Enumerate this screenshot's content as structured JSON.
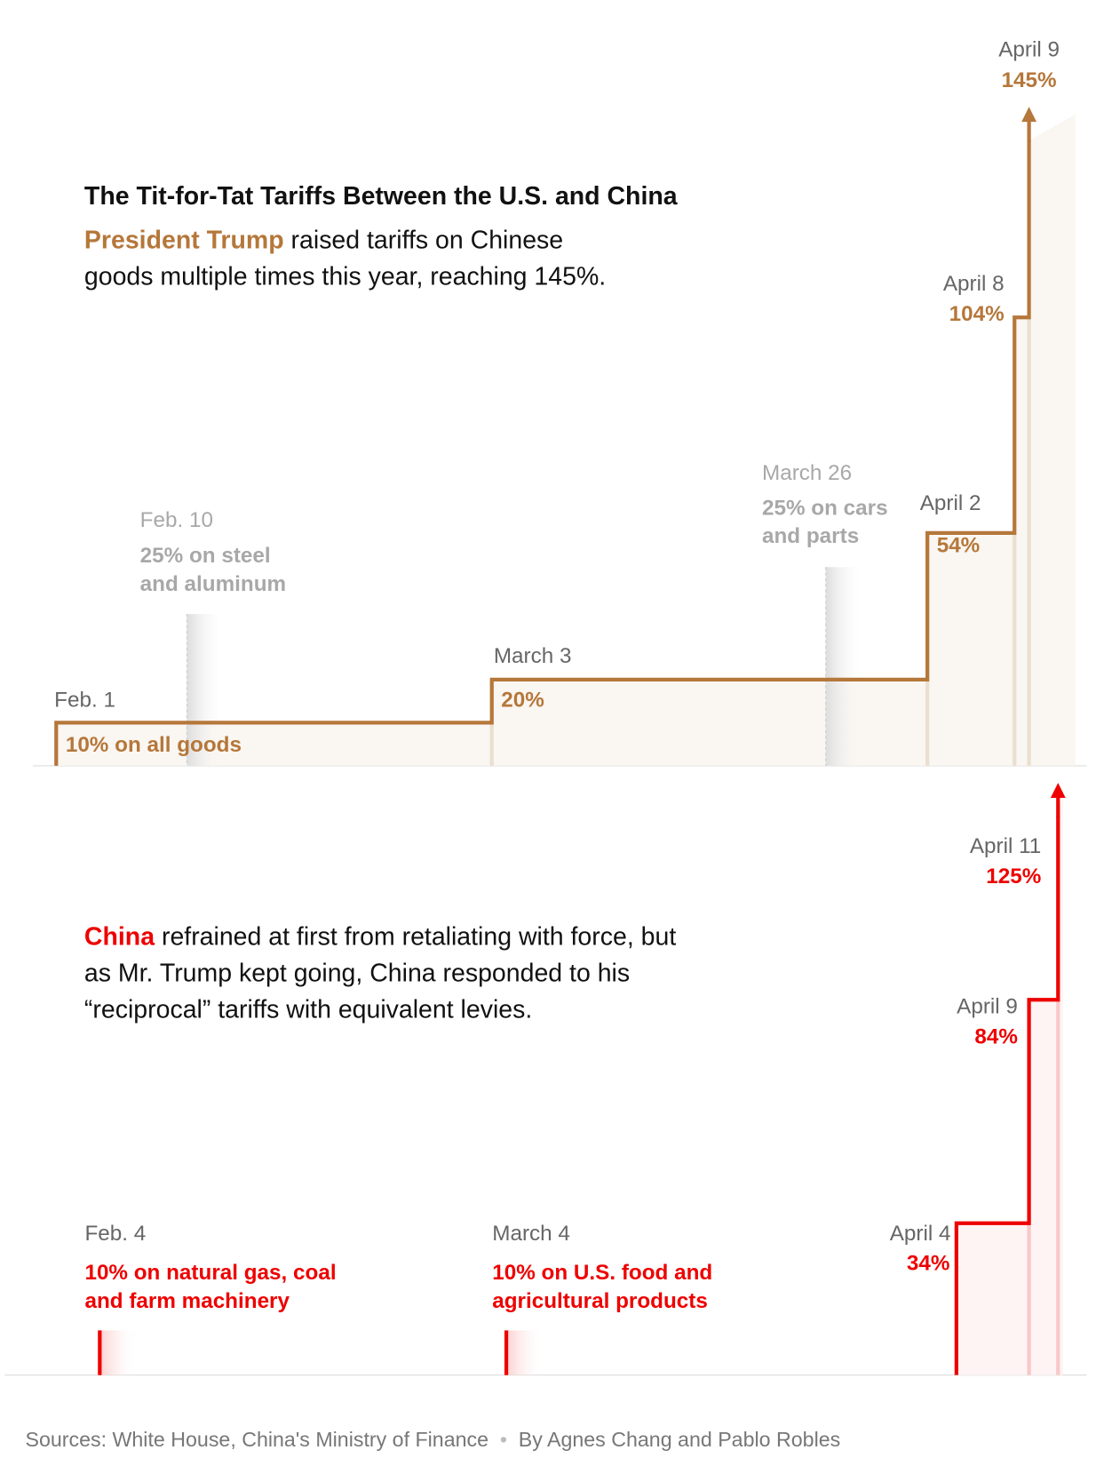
{
  "title": "The Tit-for-Tat Tariffs Between the U.S. and China",
  "chart_data": [
    {
      "type": "step",
      "color": "#b5773a",
      "lead": "President Trump",
      "text": "raised tariffs on Chinese goods multiple times this year, reaching 145%.",
      "ylim": [
        0,
        150
      ],
      "x": [
        "Feb. 1",
        "March 3",
        "April 2",
        "April 8",
        "April 9"
      ],
      "values": [
        10,
        20,
        54,
        104,
        145
      ],
      "value_labels": [
        "10% on all goods",
        "20%",
        "54%",
        "104%",
        "145%"
      ],
      "annotations": [
        {
          "x": "Feb. 10",
          "label": "25% on steel and aluminum"
        },
        {
          "x": "March 26",
          "label": "25% on cars and parts"
        }
      ]
    },
    {
      "type": "step",
      "color": "#ee0000",
      "lead": "China",
      "text": "refrained at first from retaliating with force, but as Mr. Trump kept going, China responded to his “reciprocal” tariffs with equivalent levies.",
      "ylim": [
        0,
        150
      ],
      "x": [
        "April 4",
        "April 9",
        "April 11"
      ],
      "values": [
        34,
        84,
        125
      ],
      "value_labels": [
        "34%",
        "84%",
        "125%"
      ],
      "targeted": [
        {
          "x": "Feb. 4",
          "value": 10,
          "label": "10% on natural gas, coal and farm machinery"
        },
        {
          "x": "March 4",
          "value": 10,
          "label": "10% on U.S. food and agricultural products"
        }
      ]
    }
  ],
  "sources": "Sources: White House, China's Ministry of Finance",
  "credit": "By Agnes Chang and Pablo Robles"
}
